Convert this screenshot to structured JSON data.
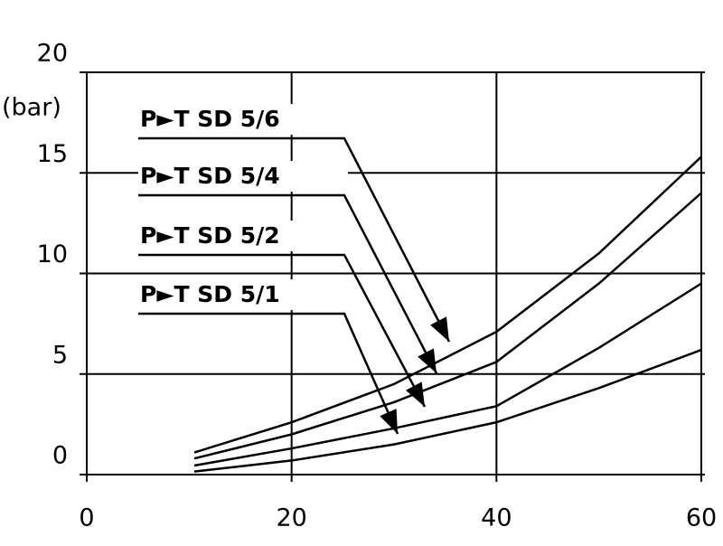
{
  "chart_data": {
    "type": "line",
    "y_label": "(bar)",
    "x": [
      10.5,
      20,
      30,
      40,
      50,
      60
    ],
    "series": [
      {
        "name": "P►T SD 5/6",
        "color": "#000000",
        "values": [
          1.1,
          2.6,
          4.5,
          7.1,
          11.0,
          15.8
        ]
      },
      {
        "name": "P►T SD 5/4",
        "color": "#000000",
        "values": [
          0.8,
          2.0,
          3.6,
          5.6,
          9.5,
          14.0
        ]
      },
      {
        "name": "P►T SD 5/2",
        "color": "#000000",
        "values": [
          0.45,
          1.3,
          2.3,
          3.4,
          6.3,
          9.5
        ]
      },
      {
        "name": "P►T SD 5/1",
        "color": "#000000",
        "values": [
          0.15,
          0.7,
          1.5,
          2.6,
          4.3,
          6.2
        ]
      }
    ],
    "xlim": [
      0,
      60
    ],
    "xticks": [
      0,
      20,
      40,
      60
    ],
    "ylim": [
      0,
      20
    ],
    "yticks": [
      0,
      5,
      10,
      15,
      20
    ],
    "grid": true
  }
}
